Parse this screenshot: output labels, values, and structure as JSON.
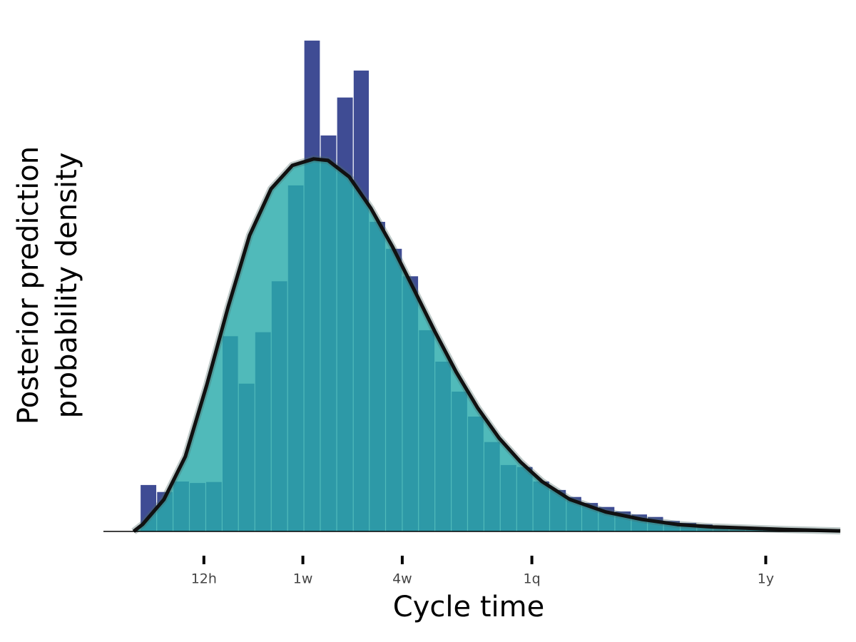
{
  "chart_data": {
    "type": "histogram",
    "xlabel": "Cycle time",
    "ylabel": [
      "Posterior prediction",
      "probability density"
    ],
    "xscale": "cbrt",
    "xlim": [
      -0.04,
      510
    ],
    "ylim": [
      0,
      100
    ],
    "xticks": [
      {
        "value": 0.5,
        "label": "12h"
      },
      {
        "value": 7,
        "label": "1w"
      },
      {
        "value": 28,
        "label": "4w"
      },
      {
        "value": 91.25,
        "label": "1q"
      },
      {
        "value": 365,
        "label": "1y"
      }
    ],
    "bins": [
      0.0004,
      0.0176,
      0.0881,
      0.25,
      0.541,
      1.0,
      1.66,
      2.57,
      3.76,
      5.27,
      7.13,
      9.39,
      12.1,
      15.3,
      18.9,
      23.1,
      28.0,
      33.4,
      39.5,
      46.3,
      53.8,
      62.1,
      71.2,
      81.2,
      92.0,
      104,
      117,
      130,
      145,
      161,
      178,
      196,
      215,
      236,
      258,
      281,
      305,
      331,
      359,
      387,
      418,
      449
    ],
    "values": [
      9.3,
      7.9,
      10,
      9.7,
      9.9,
      39.1,
      29.6,
      39.9,
      50.1,
      69.3,
      98.3,
      79.3,
      86.9,
      92.3,
      62,
      56.6,
      51.1,
      40.3,
      34,
      28,
      23,
      17.9,
      13.3,
      12.9,
      10,
      8.3,
      6.9,
      5.7,
      4.9,
      4,
      3.4,
      2.9,
      2.1,
      1.7,
      1.4,
      1,
      0.9,
      0.7,
      0.6,
      0.6,
      0.4
    ],
    "color": "#3f4c94",
    "density": {
      "color": "#111111",
      "fill": "#2aabab",
      "x": [
        0,
        0.001,
        0.04,
        0.199,
        0.564,
        1.22,
        2.25,
        3.74,
        5.77,
        8.43,
        10.6,
        14.5,
        19.3,
        25,
        31.7,
        39.5,
        48.5,
        58.9,
        70.5,
        83.7,
        98.4,
        120,
        152,
        190,
        232,
        281,
        398,
        510
      ],
      "y": [
        0,
        1.4,
        6.4,
        15,
        29.3,
        45,
        59.3,
        68.6,
        73.3,
        74.6,
        74.3,
        71,
        64.7,
        57.1,
        48.6,
        40,
        31.9,
        24.7,
        18.7,
        13.9,
        10,
        6.4,
        3.9,
        2.4,
        1.4,
        0.9,
        0.4,
        0.1
      ]
    }
  }
}
